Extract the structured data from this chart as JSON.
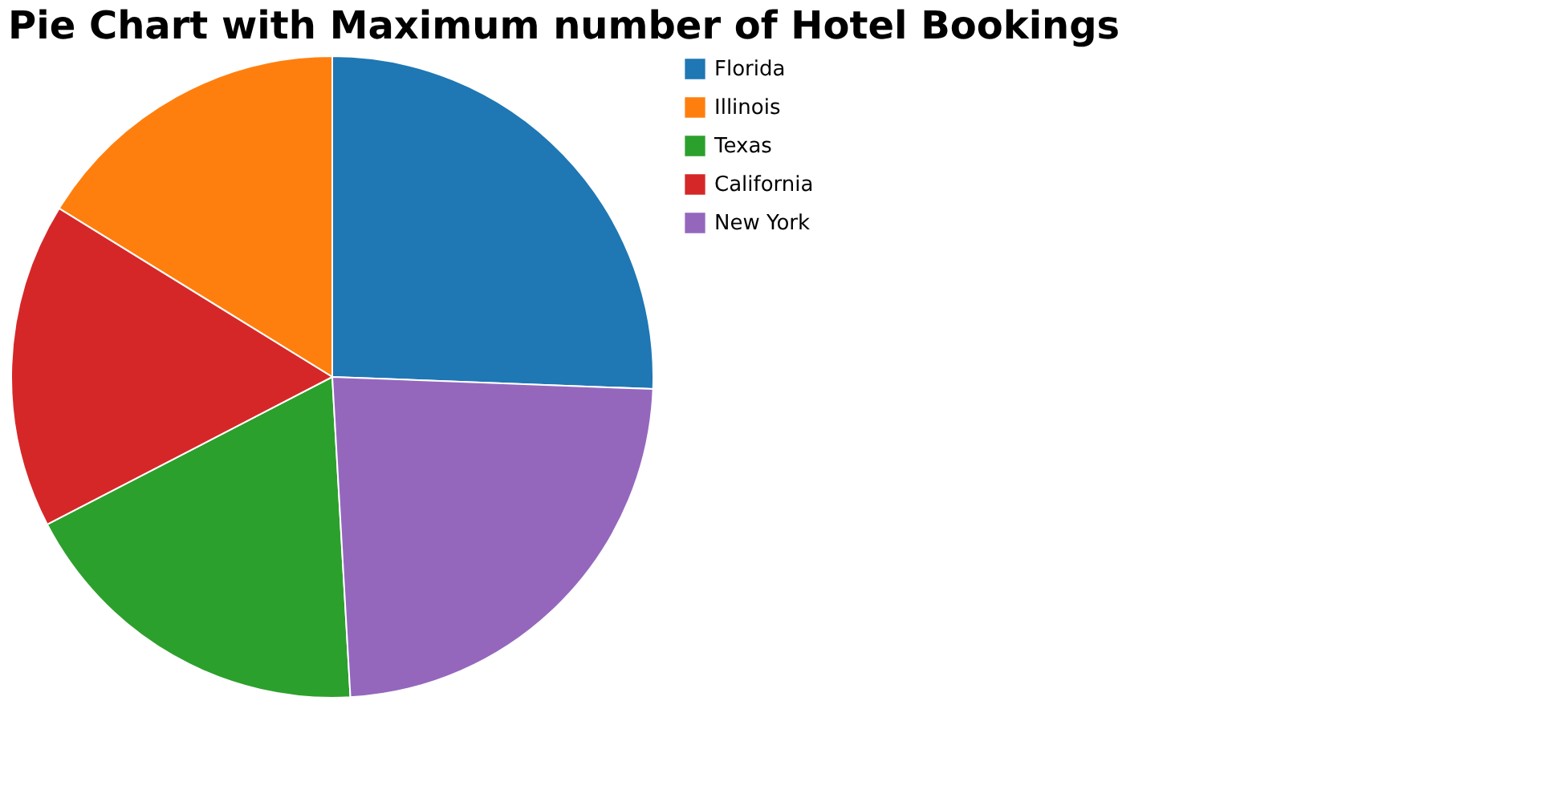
{
  "chart_data": {
    "type": "pie",
    "title": "Pie Chart with Maximum number of Hotel Bookings",
    "categories": [
      "Florida",
      "Illinois",
      "Texas",
      "California",
      "New York"
    ],
    "values": [
      25.6,
      16.2,
      18.3,
      16.4,
      23.5
    ],
    "colors": [
      "#1f77b4",
      "#ff7f0e",
      "#2ca02c",
      "#d62728",
      "#9467bd"
    ],
    "legend": "top right"
  }
}
